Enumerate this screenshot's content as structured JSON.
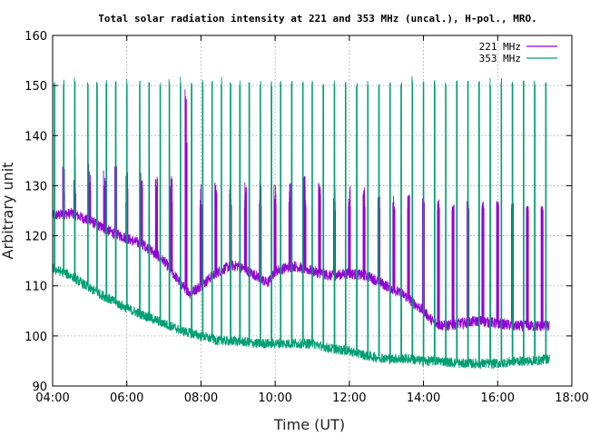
{
  "chart_data": {
    "type": "line",
    "title": "Total solar radiation intensity at 221 and 353 MHz (uncal.), H-pol., MRO.",
    "xlabel": "Time (UT)",
    "ylabel": "Arbitrary unit",
    "xlim": [
      4,
      18
    ],
    "ylim": [
      90,
      160
    ],
    "xticks": [
      4,
      6,
      8,
      10,
      12,
      14,
      16,
      18
    ],
    "xtick_labels": [
      "04:00",
      "06:00",
      "08:00",
      "10:00",
      "12:00",
      "14:00",
      "16:00",
      "18:00"
    ],
    "yticks": [
      90,
      100,
      110,
      120,
      130,
      140,
      150,
      160
    ],
    "ytick_labels": [
      "90",
      "100",
      "110",
      "120",
      "130",
      "140",
      "150",
      "160"
    ],
    "grid": true,
    "legend_position": "top-right",
    "series": [
      {
        "name": "221 MHz",
        "color": "#9400d3",
        "x_start": 4.0,
        "x_end": 17.4,
        "baseline": {
          "x": [
            4.0,
            4.5,
            5.0,
            5.5,
            6.0,
            6.5,
            7.0,
            7.4,
            7.7,
            8.0,
            8.3,
            8.5,
            8.8,
            9.0,
            9.5,
            9.8,
            10.0,
            10.5,
            11.0,
            11.5,
            12.0,
            12.5,
            13.0,
            13.5,
            14.0,
            14.3,
            14.6,
            15.0,
            15.5,
            16.0,
            16.5,
            17.0,
            17.4
          ],
          "y": [
            124,
            124.5,
            123,
            121,
            119.5,
            118,
            115,
            111,
            108.5,
            110,
            112,
            113,
            114,
            114,
            112,
            110.5,
            113,
            114,
            113,
            112,
            112.5,
            112,
            110,
            108,
            105,
            102.5,
            102,
            102.5,
            103,
            102.5,
            102,
            102,
            102
          ]
        },
        "spike_peaks": {
          "x": [
            4.3,
            4.6,
            5.0,
            5.4,
            5.7,
            6.0,
            6.4,
            6.8,
            7.2,
            7.6,
            8.0,
            8.4,
            8.8,
            9.2,
            9.6,
            10.0,
            10.4,
            10.8,
            11.2,
            11.6,
            12.0,
            12.4,
            12.8,
            13.2,
            13.6,
            14.0,
            14.4,
            14.8,
            15.2,
            15.6,
            16.0,
            16.4,
            16.8,
            17.2
          ],
          "y": [
            137.5,
            138.5,
            136.5,
            135.5,
            134,
            133.5,
            133,
            132.5,
            132,
            150,
            131,
            131,
            131,
            131,
            131,
            130.5,
            132,
            132,
            131.5,
            130.5,
            130.5,
            130,
            129,
            128.5,
            128.5,
            127.5,
            127.5,
            127,
            127,
            127,
            127,
            126.5,
            126,
            126
          ]
        },
        "spike_floor": 125
      },
      {
        "name": "353 MHz",
        "color": "#009e73",
        "x_start": 4.0,
        "x_end": 17.4,
        "baseline": {
          "x": [
            4.0,
            4.5,
            5.0,
            5.5,
            6.0,
            6.5,
            7.0,
            7.5,
            8.0,
            8.5,
            9.0,
            9.5,
            10.0,
            10.5,
            11.0,
            11.5,
            12.0,
            12.5,
            13.0,
            13.5,
            14.0,
            14.5,
            15.0,
            15.5,
            16.0,
            16.5,
            17.0,
            17.4
          ],
          "y": [
            113.5,
            112,
            109.5,
            107.5,
            105.5,
            104,
            102.5,
            101,
            100,
            99,
            99,
            98.5,
            98.5,
            98.5,
            98.5,
            97.5,
            97,
            96,
            95.5,
            95.5,
            95,
            95,
            94.5,
            94.5,
            94.5,
            95,
            95,
            95.5
          ]
        },
        "spike_x": [
          4.05,
          4.3,
          4.6,
          4.95,
          5.2,
          5.45,
          5.7,
          6.0,
          6.35,
          6.6,
          6.9,
          7.15,
          7.45,
          7.75,
          8.05,
          8.3,
          8.55,
          8.8,
          9.05,
          9.3,
          9.6,
          9.9,
          10.15,
          10.45,
          10.75,
          11.0,
          11.3,
          11.6,
          11.9,
          12.2,
          12.5,
          12.8,
          13.1,
          13.4,
          13.7,
          14.0,
          14.3,
          14.6,
          14.9,
          15.2,
          15.5,
          15.8,
          16.1,
          16.4,
          16.7,
          17.0,
          17.3
        ],
        "spike_peak": 151,
        "spike_peak_max": 152
      }
    ]
  }
}
